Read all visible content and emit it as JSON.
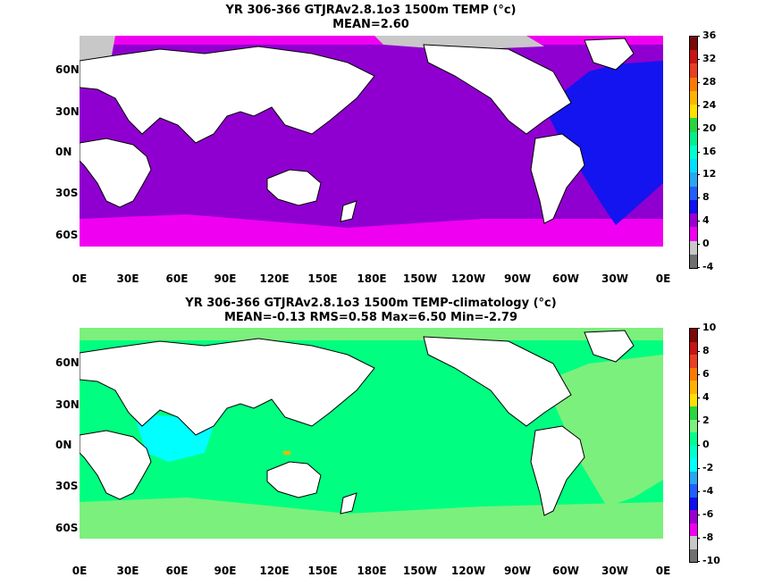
{
  "maps": [
    {
      "title_line1": "YR 306-366 GTJRAv2.8.1o3 1500m TEMP (°c)",
      "title_line2": "MEAN=2.60",
      "colorbar_labels": [
        "36",
        "32",
        "28",
        "24",
        "20",
        "16",
        "12",
        "8",
        "4",
        "0",
        "-4"
      ],
      "colorbar_colors": [
        "#7a0a0a",
        "#c81414",
        "#e84020",
        "#ff7a00",
        "#ffb400",
        "#ffe000",
        "#27d640",
        "#00f090",
        "#00ffd0",
        "#00e0ff",
        "#28a8f0",
        "#2060ff",
        "#1010f0",
        "#9a00d2",
        "#f000f0",
        "#c8c8c8",
        "#707070"
      ]
    },
    {
      "title_line1": "YR 306-366 GTJRAv2.8.1o3 1500m TEMP-climatology (°c)",
      "title_line2": "MEAN=-0.13   RMS=0.58   Max=6.50   Min=-2.79",
      "colorbar_labels": [
        "10",
        "8",
        "6",
        "4",
        "2",
        "0",
        "-2",
        "-4",
        "-6",
        "-8",
        "-10"
      ],
      "colorbar_colors": [
        "#7a0a0a",
        "#c81414",
        "#e84020",
        "#ff7a00",
        "#ffb400",
        "#ffe000",
        "#27d640",
        "#7cf07c",
        "#00ff90",
        "#00ffd0",
        "#00ffff",
        "#28a8f0",
        "#2060ff",
        "#1010f0",
        "#9a00d2",
        "#f000f0",
        "#c8c8c8",
        "#707070"
      ]
    }
  ],
  "y_axis_labels": [
    "60N",
    "30N",
    "0N",
    "30S",
    "60S"
  ],
  "x_axis_labels": [
    "0E",
    "30E",
    "60E",
    "90E",
    "120E",
    "150E",
    "180E",
    "150W",
    "120W",
    "90W",
    "60W",
    "30W",
    "0E"
  ],
  "colors": {
    "land": "#ffffff",
    "coast": "#000000",
    "map1_ocean": "#8f00d0",
    "map1_atlantic": "#1414f0",
    "map1_southern": "#f000f0",
    "map1_arctic": "#c8c8c8",
    "map2_ocean": "#00ff80",
    "map2_light": "#7cf07c",
    "map2_cyan": "#00ffff"
  }
}
